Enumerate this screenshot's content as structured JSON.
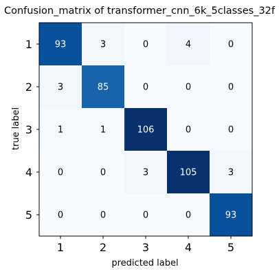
{
  "chart_data": {
    "type": "heatmap",
    "title": "Confusion_matrix of transformer_cnn_6k_5classes_32f",
    "xlabel": "predicted label",
    "ylabel": "true label",
    "x_categories": [
      "1",
      "2",
      "3",
      "4",
      "5"
    ],
    "y_categories": [
      "1",
      "2",
      "3",
      "4",
      "5"
    ],
    "values": [
      [
        93,
        3,
        0,
        4,
        0
      ],
      [
        3,
        85,
        0,
        0,
        0
      ],
      [
        1,
        1,
        106,
        0,
        0
      ],
      [
        0,
        0,
        3,
        105,
        3
      ],
      [
        0,
        0,
        0,
        0,
        93
      ]
    ],
    "colormap": "Blues",
    "vmin": 0,
    "vmax": 106,
    "low_color": "#f7fbff",
    "high_color": "#08306b",
    "grid": false
  }
}
